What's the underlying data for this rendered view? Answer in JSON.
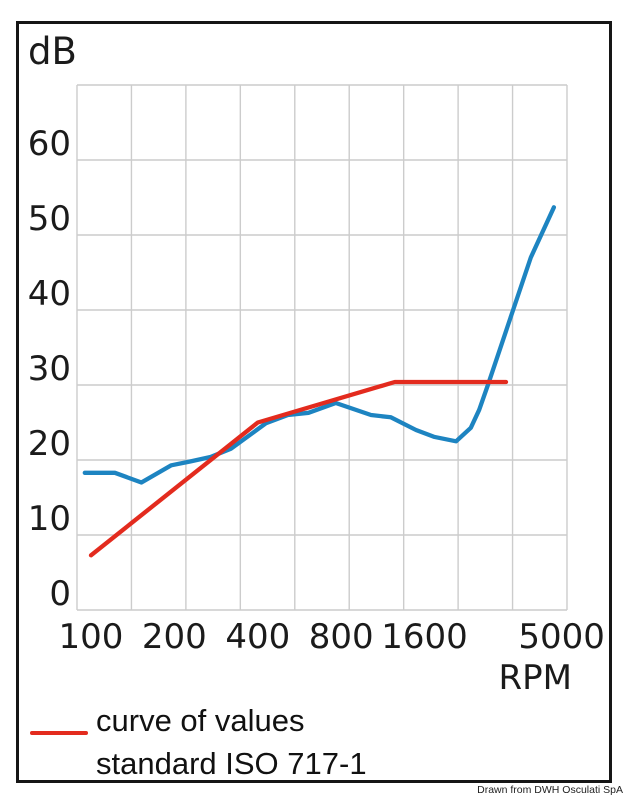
{
  "attribution": "Drawn from DWH Osculati SpA",
  "chart_data": {
    "type": "line",
    "ylabel": "dB",
    "xlabel": "RPM",
    "x_scale": "log",
    "x_ticks": [
      100,
      200,
      400,
      800,
      1600,
      5000
    ],
    "y_ticks": [
      60,
      50,
      40,
      30,
      20,
      10,
      0
    ],
    "ylim": [
      0,
      70
    ],
    "xlim": [
      95,
      5600
    ],
    "grid": {
      "columns": 9,
      "rows": 7,
      "color": "#cccccc",
      "on": true
    },
    "legend": {
      "position": "bottom-left",
      "line1": "curve of values",
      "line2": "standard ISO 717-1",
      "swatch_color": "#e32b1e"
    },
    "series": [
      {
        "id": "blue-curve",
        "color": "#1d84c1",
        "points": [
          [
            95,
            18.3
          ],
          [
            122,
            18.3
          ],
          [
            152,
            17.0
          ],
          [
            195,
            19.3
          ],
          [
            228,
            19.8
          ],
          [
            270,
            20.4
          ],
          [
            320,
            21.5
          ],
          [
            428,
            24.9
          ],
          [
            514,
            26.0
          ],
          [
            610,
            26.3
          ],
          [
            765,
            27.6
          ],
          [
            1025,
            26.0
          ],
          [
            1210,
            25.7
          ],
          [
            1490,
            24.0
          ],
          [
            1730,
            23.1
          ],
          [
            2080,
            22.5
          ],
          [
            2350,
            24.3
          ],
          [
            2520,
            26.7
          ],
          [
            2710,
            30.0
          ],
          [
            3340,
            40.0
          ],
          [
            3870,
            47.0
          ],
          [
            4690,
            53.7
          ]
        ]
      },
      {
        "id": "red-curve",
        "legend": "curve of values standard ISO 717-1",
        "color": "#e32b1e",
        "points": [
          [
            100,
            7.3
          ],
          [
            400,
            25.0
          ],
          [
            1250,
            30.4
          ],
          [
            3150,
            30.4
          ]
        ]
      }
    ]
  }
}
